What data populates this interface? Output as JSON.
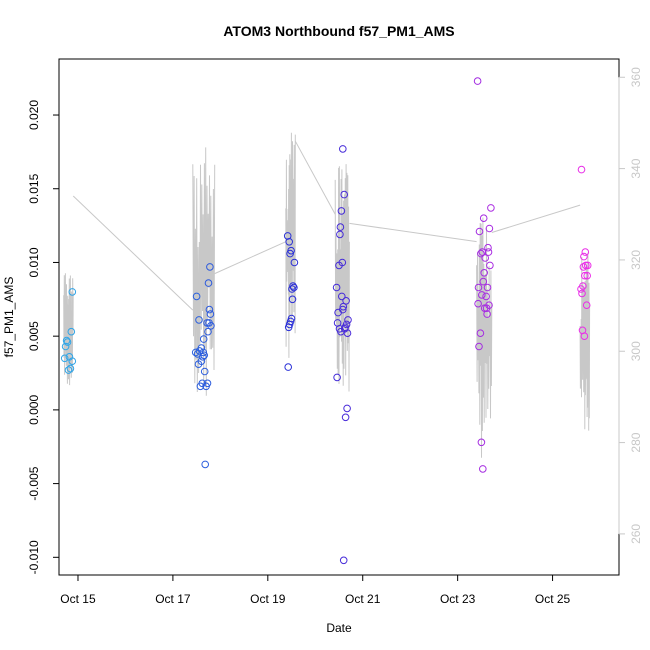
{
  "chart_data": {
    "type": "scatter",
    "title": "ATOM3 Northbound f57_PM1_AMS",
    "xlabel": "Date",
    "ylabel": "f57_PM1_AMS",
    "x_unit": "day of October (fractional)",
    "xlim": [
      14.6,
      26.4
    ],
    "ylim": [
      -0.0112,
      0.0238
    ],
    "x_ticks": [
      {
        "value": 15,
        "label": "Oct 15"
      },
      {
        "value": 17,
        "label": "Oct 17"
      },
      {
        "value": 19,
        "label": "Oct 19"
      },
      {
        "value": 21,
        "label": "Oct 21"
      },
      {
        "value": 23,
        "label": "Oct 23"
      },
      {
        "value": 25,
        "label": "Oct 25"
      }
    ],
    "y_ticks": [
      {
        "value": -0.01,
        "label": "-0.010"
      },
      {
        "value": -0.005,
        "label": "-0.005"
      },
      {
        "value": 0.0,
        "label": "0.000"
      },
      {
        "value": 0.005,
        "label": "0.005"
      },
      {
        "value": 0.01,
        "label": "0.010"
      },
      {
        "value": 0.015,
        "label": "0.015"
      },
      {
        "value": 0.02,
        "label": "0.020"
      }
    ],
    "y2lim": [
      251,
      364
    ],
    "y2_ticks": [
      {
        "value": 260,
        "label": "260"
      },
      {
        "value": 280,
        "label": "280"
      },
      {
        "value": 300,
        "label": "300"
      },
      {
        "value": 320,
        "label": "320"
      },
      {
        "value": 340,
        "label": "340"
      },
      {
        "value": 360,
        "label": "360"
      }
    ],
    "grid": false,
    "legend": "none",
    "colors": {
      "line": "#c8c8c8",
      "points_start": "#2fa8e8",
      "points_mid": "#2a2ad6",
      "points_end": "#ee2ee8",
      "right_axis": "#c8c8c8"
    },
    "series": [
      {
        "kind": "points",
        "points": [
          {
            "x": 14.72,
            "y": 0.0035
          },
          {
            "x": 14.74,
            "y": 0.0043
          },
          {
            "x": 14.76,
            "y": 0.0047
          },
          {
            "x": 14.78,
            "y": 0.0046
          },
          {
            "x": 14.8,
            "y": 0.0027
          },
          {
            "x": 14.82,
            "y": 0.0036
          },
          {
            "x": 14.84,
            "y": 0.0028
          },
          {
            "x": 14.86,
            "y": 0.0053
          },
          {
            "x": 14.88,
            "y": 0.0033
          },
          {
            "x": 14.88,
            "y": 0.008
          },
          {
            "x": 17.48,
            "y": 0.0039
          },
          {
            "x": 17.5,
            "y": 0.0077
          },
          {
            "x": 17.52,
            "y": 0.0038
          },
          {
            "x": 17.54,
            "y": 0.0031
          },
          {
            "x": 17.55,
            "y": 0.0061
          },
          {
            "x": 17.56,
            "y": 0.004
          },
          {
            "x": 17.58,
            "y": 0.0016
          },
          {
            "x": 17.6,
            "y": 0.0042
          },
          {
            "x": 17.6,
            "y": 0.0033
          },
          {
            "x": 17.62,
            "y": 0.0018
          },
          {
            "x": 17.63,
            "y": 0.0036
          },
          {
            "x": 17.64,
            "y": 0.0039
          },
          {
            "x": 17.65,
            "y": 0.0048
          },
          {
            "x": 17.66,
            "y": 0.0037
          },
          {
            "x": 17.67,
            "y": 0.0026
          },
          {
            "x": 17.68,
            "y": -0.0037
          },
          {
            "x": 17.7,
            "y": 0.0016
          },
          {
            "x": 17.72,
            "y": 0.0059
          },
          {
            "x": 17.73,
            "y": 0.0018
          },
          {
            "x": 17.74,
            "y": 0.0053
          },
          {
            "x": 17.75,
            "y": 0.0086
          },
          {
            "x": 17.76,
            "y": 0.0059
          },
          {
            "x": 17.77,
            "y": 0.0068
          },
          {
            "x": 17.78,
            "y": 0.0097
          },
          {
            "x": 17.79,
            "y": 0.0065
          },
          {
            "x": 17.8,
            "y": 0.0057
          },
          {
            "x": 19.42,
            "y": 0.0118
          },
          {
            "x": 19.43,
            "y": 0.0029
          },
          {
            "x": 19.44,
            "y": 0.0056
          },
          {
            "x": 19.45,
            "y": 0.0114
          },
          {
            "x": 19.46,
            "y": 0.0058
          },
          {
            "x": 19.47,
            "y": 0.0106
          },
          {
            "x": 19.48,
            "y": 0.006
          },
          {
            "x": 19.49,
            "y": 0.0108
          },
          {
            "x": 19.5,
            "y": 0.0062
          },
          {
            "x": 19.51,
            "y": 0.0082
          },
          {
            "x": 19.52,
            "y": 0.0075
          },
          {
            "x": 19.53,
            "y": 0.0084
          },
          {
            "x": 19.55,
            "y": 0.0083
          },
          {
            "x": 19.56,
            "y": 0.01
          },
          {
            "x": 20.45,
            "y": 0.0083
          },
          {
            "x": 20.46,
            "y": 0.0022
          },
          {
            "x": 20.47,
            "y": 0.0059
          },
          {
            "x": 20.48,
            "y": 0.0066
          },
          {
            "x": 20.5,
            "y": 0.0098
          },
          {
            "x": 20.51,
            "y": 0.0055
          },
          {
            "x": 20.52,
            "y": 0.0119
          },
          {
            "x": 20.53,
            "y": 0.0124
          },
          {
            "x": 20.54,
            "y": 0.0053
          },
          {
            "x": 20.55,
            "y": 0.0135
          },
          {
            "x": 20.56,
            "y": 0.0077
          },
          {
            "x": 20.57,
            "y": 0.01
          },
          {
            "x": 20.58,
            "y": 0.0068
          },
          {
            "x": 20.58,
            "y": 0.0177
          },
          {
            "x": 20.59,
            "y": 0.007
          },
          {
            "x": 20.6,
            "y": -0.0102
          },
          {
            "x": 20.61,
            "y": 0.0146
          },
          {
            "x": 20.62,
            "y": 0.0055
          },
          {
            "x": 20.63,
            "y": 0.0056
          },
          {
            "x": 20.64,
            "y": -0.0005
          },
          {
            "x": 20.65,
            "y": 0.0074
          },
          {
            "x": 20.66,
            "y": 0.0058
          },
          {
            "x": 20.67,
            "y": 0.0001
          },
          {
            "x": 20.68,
            "y": 0.0052
          },
          {
            "x": 20.69,
            "y": 0.0061
          },
          {
            "x": 23.42,
            "y": 0.0223
          },
          {
            "x": 23.43,
            "y": 0.0072
          },
          {
            "x": 23.44,
            "y": 0.0083
          },
          {
            "x": 23.45,
            "y": 0.0043
          },
          {
            "x": 23.46,
            "y": 0.0121
          },
          {
            "x": 23.48,
            "y": 0.0052
          },
          {
            "x": 23.49,
            "y": 0.0106
          },
          {
            "x": 23.5,
            "y": -0.0022
          },
          {
            "x": 23.51,
            "y": 0.0078
          },
          {
            "x": 23.52,
            "y": 0.0107
          },
          {
            "x": 23.53,
            "y": -0.004
          },
          {
            "x": 23.54,
            "y": 0.0087
          },
          {
            "x": 23.55,
            "y": 0.013
          },
          {
            "x": 23.56,
            "y": 0.0093
          },
          {
            "x": 23.57,
            "y": 0.0069
          },
          {
            "x": 23.58,
            "y": 0.0103
          },
          {
            "x": 23.6,
            "y": 0.0077
          },
          {
            "x": 23.61,
            "y": 0.0069
          },
          {
            "x": 23.62,
            "y": 0.0065
          },
          {
            "x": 23.63,
            "y": 0.0083
          },
          {
            "x": 23.64,
            "y": 0.011
          },
          {
            "x": 23.65,
            "y": 0.0107
          },
          {
            "x": 23.66,
            "y": 0.0071
          },
          {
            "x": 23.67,
            "y": 0.0123
          },
          {
            "x": 23.68,
            "y": 0.0098
          },
          {
            "x": 23.7,
            "y": 0.0137
          },
          {
            "x": 25.6,
            "y": 0.0082
          },
          {
            "x": 25.61,
            "y": 0.0163
          },
          {
            "x": 25.62,
            "y": 0.0079
          },
          {
            "x": 25.63,
            "y": 0.0054
          },
          {
            "x": 25.64,
            "y": 0.0084
          },
          {
            "x": 25.65,
            "y": 0.0097
          },
          {
            "x": 25.66,
            "y": 0.0104
          },
          {
            "x": 25.67,
            "y": 0.005
          },
          {
            "x": 25.68,
            "y": 0.0091
          },
          {
            "x": 25.69,
            "y": 0.0107
          },
          {
            "x": 25.7,
            "y": 0.0098
          },
          {
            "x": 25.72,
            "y": 0.0071
          },
          {
            "x": 25.73,
            "y": 0.0091
          },
          {
            "x": 25.74,
            "y": 0.0098
          }
        ]
      },
      {
        "kind": "line",
        "axis": "right",
        "line_segments": [
          {
            "x_start": 14.7,
            "x_end": 14.9,
            "y_min": 292,
            "y_max": 318
          },
          {
            "x_start": 17.42,
            "x_end": 17.88,
            "y_min": 289,
            "y_max": 347
          },
          {
            "x_start": 19.38,
            "x_end": 19.58,
            "y_min": 298,
            "y_max": 348
          },
          {
            "x_start": 20.42,
            "x_end": 20.72,
            "y_min": 291,
            "y_max": 341
          },
          {
            "x_start": 23.4,
            "x_end": 23.72,
            "y_min": 275,
            "y_max": 330
          },
          {
            "x_start": 25.58,
            "x_end": 25.78,
            "y_min": 282,
            "y_max": 322
          }
        ],
        "connectors": [
          {
            "x": [
              14.9,
              17.42
            ],
            "y": [
              334,
              309
            ]
          },
          {
            "x": [
              17.88,
              19.38
            ],
            "y": [
              317,
              324
            ]
          },
          {
            "x": [
              19.58,
              20.42
            ],
            "y": [
              346,
              330
            ]
          },
          {
            "x": [
              20.72,
              23.4
            ],
            "y": [
              328,
              324
            ]
          },
          {
            "x": [
              23.72,
              25.58
            ],
            "y": [
              326,
              332
            ]
          }
        ]
      }
    ]
  }
}
